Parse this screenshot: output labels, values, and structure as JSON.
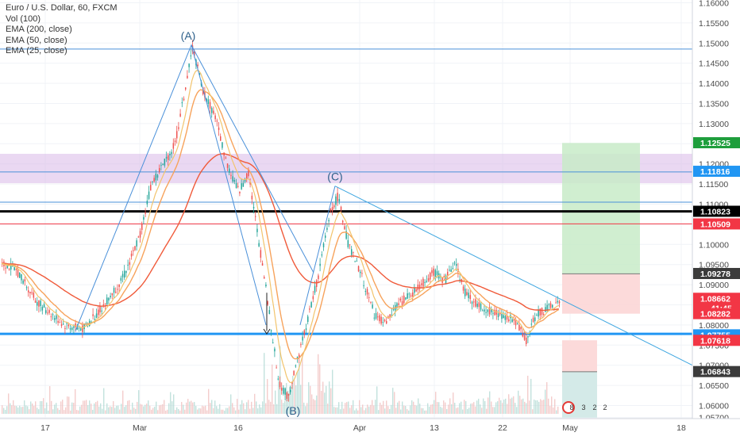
{
  "legend": {
    "symbol": "Euro / U.S. Dollar, 60, FXCM",
    "volume": "Vol (100)",
    "ema200": "EMA (200, close)",
    "ema50": "EMA (50, close)",
    "ema25": "EMA (25, close)"
  },
  "colors": {
    "wave": "#4a90d9",
    "trendline": "#3ea6e0",
    "support": "#2196f3",
    "resistance_red": "#f23645",
    "ema200": "#f05a3a",
    "ema50": "#f7a35c",
    "ema25": "#f2c46d",
    "candle_up": "#26a69a",
    "candle_down": "#ef5350",
    "zone_fill": "#d9b8e8",
    "profit_fill": "#c8ebc8",
    "stop_fill": "#fcd6d6"
  },
  "chart_data": {
    "type": "candlestick",
    "ylim": [
      1.0565,
      1.1605
    ],
    "y_ticks": [
      "1.16000",
      "1.15500",
      "1.15000",
      "1.14500",
      "1.14000",
      "1.13500",
      "1.13000",
      "1.12500",
      "1.12000",
      "1.11500",
      "1.11000",
      "1.10500",
      "1.10000",
      "1.09500",
      "1.09000",
      "1.08500",
      "1.08000",
      "1.07500",
      "1.07000",
      "1.06500",
      "1.06000",
      "1.05700"
    ],
    "x_ticks": [
      "17",
      "Mar",
      "16",
      "Apr",
      "13",
      "22",
      "May",
      "18"
    ],
    "wave_points": [
      {
        "label": "(A)",
        "price": 1.1495
      },
      {
        "label": "(B)",
        "price": 1.0605
      },
      {
        "label": "(C)",
        "price": 1.1145
      }
    ],
    "horizontal_levels": [
      {
        "price": 1.1485,
        "kind": "blue-thin"
      },
      {
        "price": 1.118,
        "kind": "blue-thin"
      },
      {
        "price": 1.1105,
        "kind": "blue-thin"
      },
      {
        "price": 1.1082,
        "kind": "black-thick"
      },
      {
        "price": 1.1051,
        "kind": "red-thin"
      },
      {
        "price": 1.0778,
        "kind": "blue-thick"
      }
    ],
    "zones": [
      {
        "kind": "supply",
        "from": 1.1152,
        "to": 1.1225
      }
    ],
    "price_badges": [
      {
        "value": "1.12525",
        "price": 1.12525,
        "color": "#1e9e3c"
      },
      {
        "value": "1.11816",
        "price": 1.11816,
        "color": "#2196f3"
      },
      {
        "value": "1.10823",
        "price": 1.10823,
        "color": "#000000"
      },
      {
        "value": "1.10509",
        "price": 1.10509,
        "color": "#f23645"
      },
      {
        "value": "1.09278",
        "price": 1.09278,
        "color": "#3b3b3b"
      },
      {
        "value": "1.08662",
        "price": 1.08662,
        "color": "#f23645"
      },
      {
        "value": "41:45",
        "price": 1.0842,
        "color": "#f23645"
      },
      {
        "value": "1.08282",
        "price": 1.08282,
        "color": "#f23645"
      },
      {
        "value": "1.07755",
        "price": 1.07755,
        "color": "#2196f3"
      },
      {
        "value": "1.07618",
        "price": 1.07618,
        "color": "#f23645"
      },
      {
        "value": "1.06843",
        "price": 1.06843,
        "color": "#3b3b3b"
      }
    ],
    "long_position": {
      "entry": 1.0927,
      "target": 1.1252,
      "stop": 1.0828
    },
    "short_position": {
      "entry": 1.0684,
      "stop": 1.0762,
      "target": 1.057
    },
    "trendline": {
      "from_price": 1.1145,
      "to_price": 1.07
    },
    "event_badges": [
      "8",
      "3",
      "2",
      "2"
    ]
  }
}
